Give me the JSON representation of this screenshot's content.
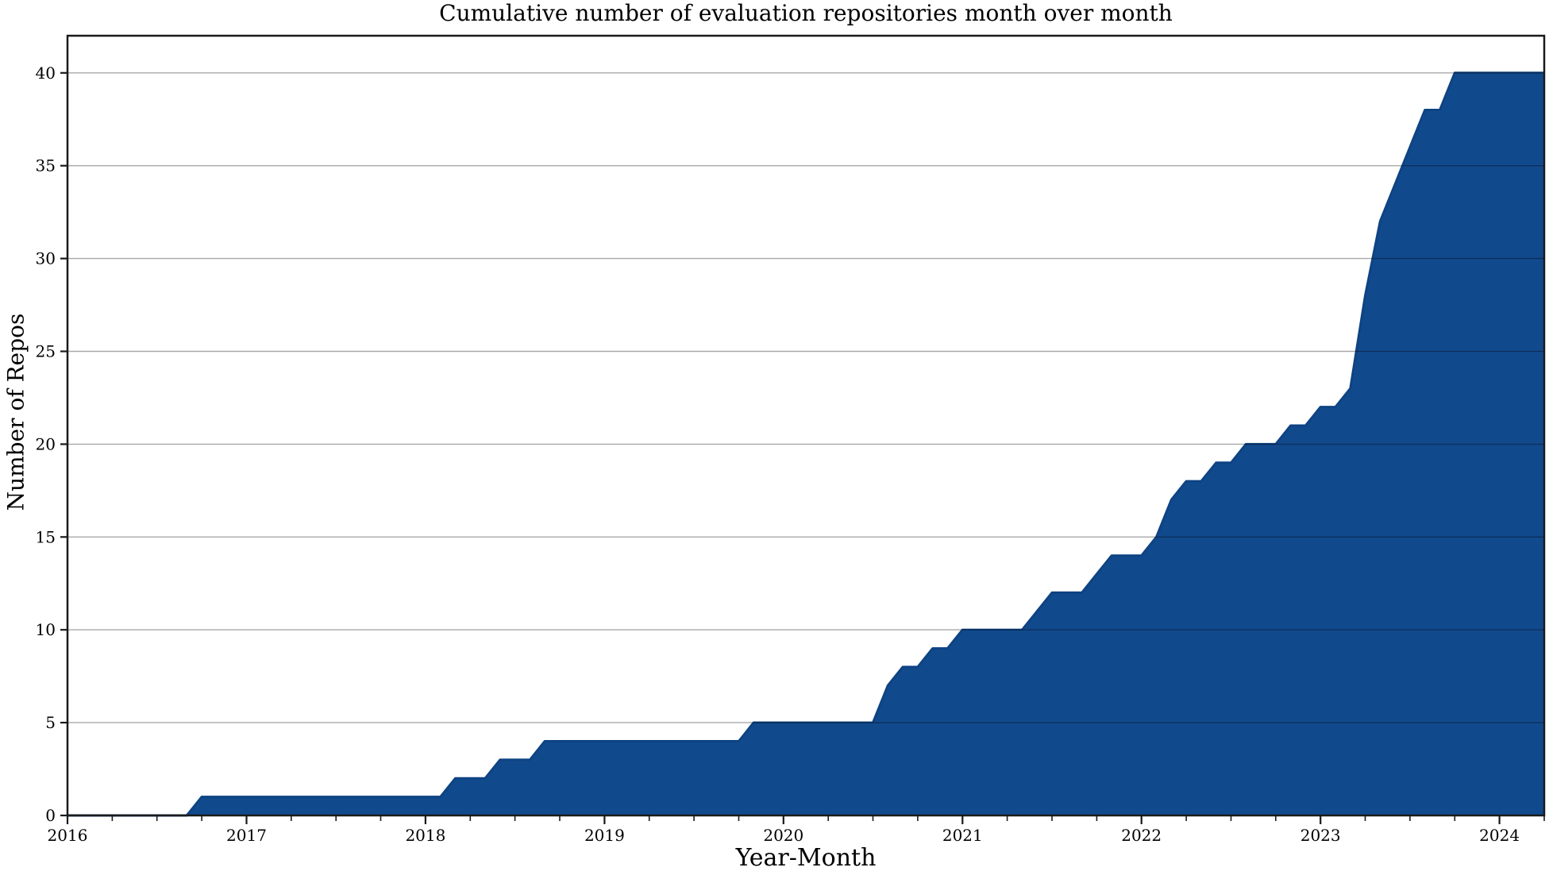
{
  "figure": {
    "title": "Cumulative number of evaluation repositories month over month",
    "xlabel": "Year-Month",
    "ylabel": "Number of Repos"
  },
  "chart_data": {
    "type": "area",
    "title": "Cumulative number of evaluation repositories month over month",
    "xlabel": "Year-Month",
    "ylabel": "Number of Repos",
    "fill_color": "#114a8c",
    "line_color": "#0e4383",
    "grid": true,
    "grid_color": "rgba(0,0,0,0.34)",
    "spine_color": "#1a1a1a",
    "text_color": "#000000",
    "ylim": [
      0,
      42
    ],
    "y_ticks": [
      0,
      5,
      10,
      15,
      20,
      25,
      30,
      35,
      40
    ],
    "x_tick_labels": [
      "2016",
      "2017",
      "2018",
      "2019",
      "2020",
      "2021",
      "2022",
      "2023",
      "2024"
    ],
    "x": [
      "2016-01",
      "2016-02",
      "2016-03",
      "2016-04",
      "2016-05",
      "2016-06",
      "2016-07",
      "2016-08",
      "2016-09",
      "2016-10",
      "2016-11",
      "2016-12",
      "2017-01",
      "2017-02",
      "2017-03",
      "2017-04",
      "2017-05",
      "2017-06",
      "2017-07",
      "2017-08",
      "2017-09",
      "2017-10",
      "2017-11",
      "2017-12",
      "2018-01",
      "2018-02",
      "2018-03",
      "2018-04",
      "2018-05",
      "2018-06",
      "2018-07",
      "2018-08",
      "2018-09",
      "2018-10",
      "2018-11",
      "2018-12",
      "2019-01",
      "2019-02",
      "2019-03",
      "2019-04",
      "2019-05",
      "2019-06",
      "2019-07",
      "2019-08",
      "2019-09",
      "2019-10",
      "2019-11",
      "2019-12",
      "2020-01",
      "2020-02",
      "2020-03",
      "2020-04",
      "2020-05",
      "2020-06",
      "2020-07",
      "2020-08",
      "2020-09",
      "2020-10",
      "2020-11",
      "2020-12",
      "2021-01",
      "2021-02",
      "2021-03",
      "2021-04",
      "2021-05",
      "2021-06",
      "2021-07",
      "2021-08",
      "2021-09",
      "2021-10",
      "2021-11",
      "2021-12",
      "2022-01",
      "2022-02",
      "2022-03",
      "2022-04",
      "2022-05",
      "2022-06",
      "2022-07",
      "2022-08",
      "2022-09",
      "2022-10",
      "2022-11",
      "2022-12",
      "2023-01",
      "2023-02",
      "2023-03",
      "2023-04",
      "2023-05",
      "2023-06",
      "2023-07",
      "2023-08",
      "2023-09",
      "2023-10",
      "2023-11",
      "2023-12",
      "2024-01",
      "2024-02",
      "2024-03",
      "2024-04"
    ],
    "values": [
      0,
      0,
      0,
      0,
      0,
      0,
      0,
      0,
      0,
      1,
      1,
      1,
      1,
      1,
      1,
      1,
      1,
      1,
      1,
      1,
      1,
      1,
      1,
      1,
      1,
      1,
      2,
      2,
      2,
      3,
      3,
      3,
      4,
      4,
      4,
      4,
      4,
      4,
      4,
      4,
      4,
      4,
      4,
      4,
      4,
      4,
      5,
      5,
      5,
      5,
      5,
      5,
      5,
      5,
      5,
      7,
      8,
      8,
      9,
      9,
      10,
      10,
      10,
      10,
      10,
      11,
      12,
      12,
      12,
      13,
      14,
      14,
      14,
      15,
      17,
      18,
      18,
      19,
      19,
      20,
      20,
      20,
      21,
      21,
      22,
      22,
      23,
      28,
      32,
      34,
      36,
      38,
      38,
      40,
      40,
      40,
      40,
      40,
      40,
      40
    ]
  }
}
